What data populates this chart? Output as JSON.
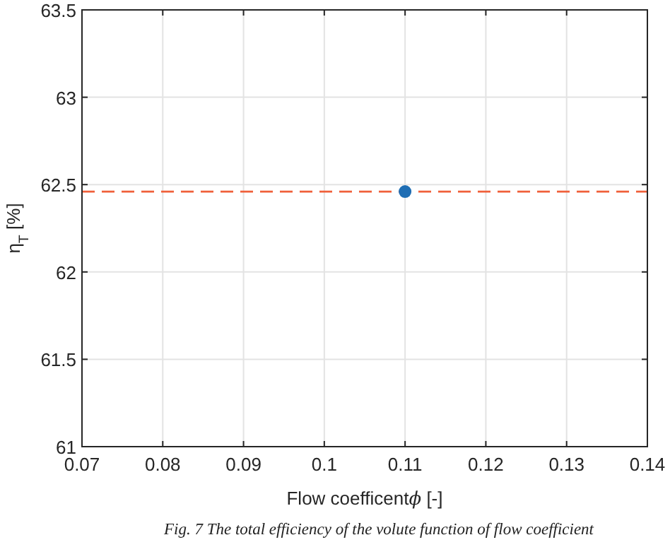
{
  "chart_data": {
    "type": "scatter",
    "xlabel": "Flow coefficentϕ [-]",
    "ylabel": "η$_{T}$ [%]",
    "x": [
      0.11
    ],
    "series": [
      {
        "color": "#1f6eb4",
        "values": [
          62.46
        ]
      }
    ],
    "marker": "circle",
    "ref_lines": [
      {
        "axis": "y",
        "value": 62.46,
        "color": "#f0603a",
        "line_style": "dashed"
      }
    ],
    "xlim": [
      0.07,
      0.14
    ],
    "xticks": [
      0.07,
      0.08,
      0.09,
      0.1,
      0.11,
      0.12,
      0.13,
      0.14
    ],
    "ylim": [
      61,
      63.5
    ],
    "yticks": [
      61,
      61.5,
      62,
      62.5,
      63,
      63.5
    ],
    "grid": true,
    "annotations": [
      "Fig. 7 The total efficiency of the volute function of flow coefficient"
    ]
  }
}
